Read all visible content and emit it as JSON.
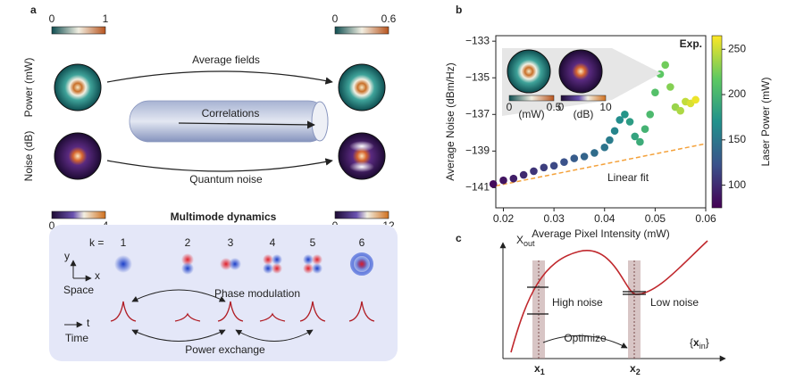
{
  "panel_a": {
    "label": "a",
    "power_label": "Power (mW)",
    "noise_label": "Noise (dB)",
    "power_in_ticks": [
      0,
      1
    ],
    "power_out_ticks": [
      0,
      0.6
    ],
    "noise_in_ticks": [
      0,
      4
    ],
    "noise_out_ticks": [
      0,
      12
    ],
    "arrow_top": "Average fields",
    "arrow_mid": "Correlations",
    "arrow_bottom": "Quantum noise",
    "dynamics": {
      "title": "Multimode dynamics",
      "k_label": "k =",
      "modes": [
        1,
        2,
        3,
        4,
        5,
        6
      ],
      "y_axis": "y",
      "x_axis": "x",
      "space": "Space",
      "t_axis": "t",
      "time": "Time",
      "phase": "Phase modulation",
      "power": "Power exchange"
    }
  },
  "chart_data": {
    "type": "scatter",
    "panel": "b",
    "x_label": "Average Pixel Intensity (mW)",
    "y_label": "Average Noise (dBm/Hz)",
    "x": [
      0.018,
      0.02,
      0.022,
      0.024,
      0.026,
      0.028,
      0.03,
      0.032,
      0.034,
      0.036,
      0.038,
      0.04,
      0.041,
      0.042,
      0.043,
      0.044,
      0.045,
      0.046,
      0.047,
      0.048,
      0.049,
      0.05,
      0.051,
      0.052,
      0.053,
      0.054,
      0.055,
      0.056,
      0.057,
      0.058
    ],
    "y": [
      -140.8,
      -140.6,
      -140.5,
      -140.3,
      -140.1,
      -139.9,
      -139.8,
      -139.6,
      -139.4,
      -139.3,
      -139.1,
      -138.8,
      -138.4,
      -137.9,
      -137.3,
      -137,
      -137.4,
      -138.2,
      -138.5,
      -137.8,
      -137,
      -135.8,
      -134.8,
      -134.3,
      -135.5,
      -136.6,
      -136.8,
      -136.3,
      -136.4,
      -136.2
    ],
    "c": [
      80,
      86,
      92,
      99,
      105,
      111,
      117,
      123,
      130,
      136,
      142,
      148,
      154,
      161,
      167,
      173,
      179,
      185,
      192,
      198,
      204,
      210,
      216,
      223,
      229,
      235,
      241,
      247,
      254,
      260
    ],
    "colormap": "viridis",
    "colorbar_label": "Laser Power (mW)",
    "clim": [
      75,
      265
    ],
    "cticks": [
      100,
      150,
      200,
      250
    ],
    "xlim": [
      0.0185,
      0.06
    ],
    "xticks": [
      0.02,
      0.03,
      0.04,
      0.05,
      0.06
    ],
    "ylim": [
      -142.1,
      -132.7
    ],
    "yticks": [
      {
        "value": -141,
        "label": "−141"
      },
      {
        "value": -139,
        "label": "−139"
      },
      {
        "value": -137,
        "label": "−137"
      },
      {
        "value": -135,
        "label": "−135"
      },
      {
        "value": -133,
        "label": "−133"
      }
    ],
    "fit": {
      "name": "Linear fit",
      "color": "#f4a13a",
      "x": [
        0.0185,
        0.06
      ],
      "y": [
        -140.9,
        -138.6
      ]
    },
    "inset": {
      "label": "Exp.",
      "power_unit": "(mW)",
      "power_ticks": [
        0,
        0.5
      ],
      "noise_unit": "(dB)",
      "noise_ticks": [
        0,
        10
      ]
    }
  },
  "panel_c": {
    "label": "c",
    "y_axis": "X",
    "y_axis_sub": "out",
    "x_open": "{",
    "x_var": "x",
    "x_sub": "in",
    "x_close": "}",
    "high": "High noise",
    "low": "Low noise",
    "optimize": "Optimize",
    "x1": "x",
    "x1_sub": "1",
    "x2": "x",
    "x2_sub": "2"
  }
}
